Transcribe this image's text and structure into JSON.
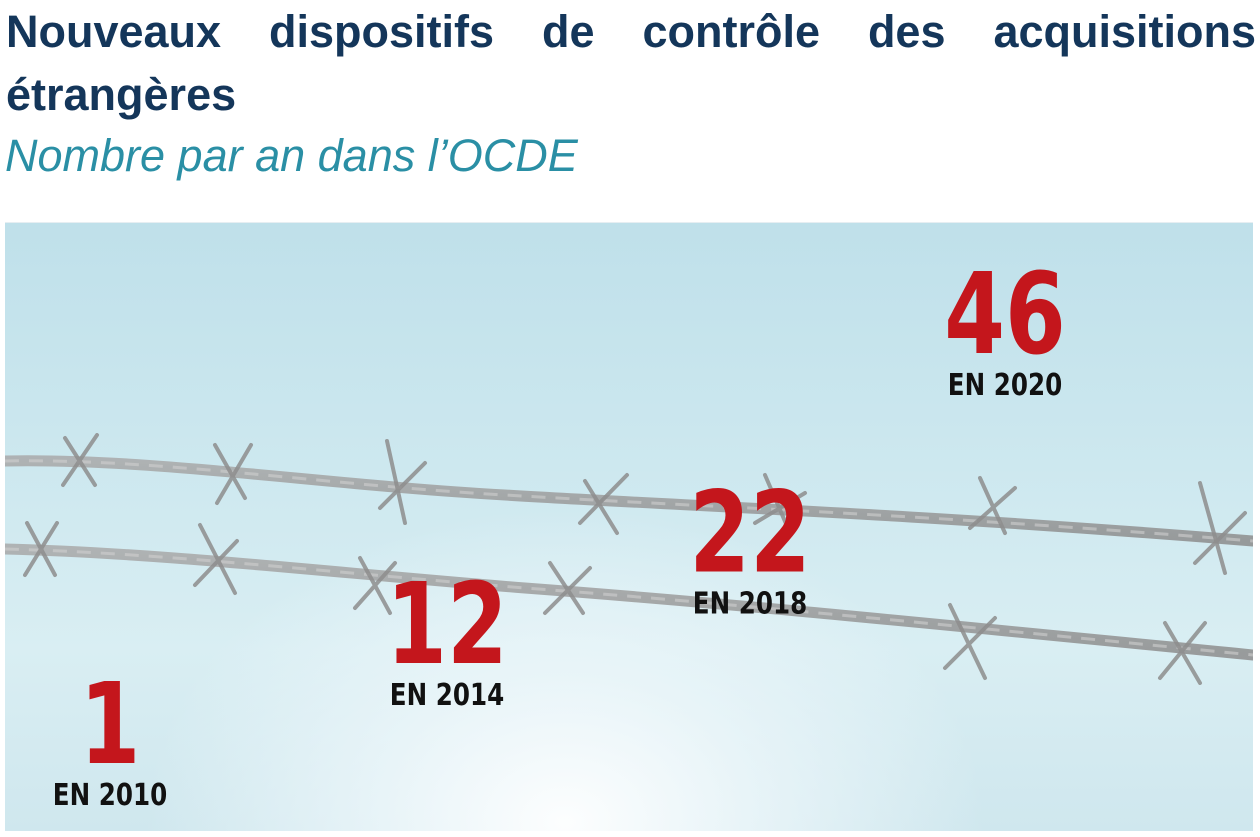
{
  "header": {
    "title": "Nouveaux dispositifs de contrôle des acquisitions étrangères",
    "subtitle": "Nombre par an dans l’OCDE"
  },
  "colors": {
    "title": "#14365a",
    "subtitle": "#2a8fa5",
    "value": "#c4161c",
    "year": "#111111",
    "background": "#cfe7ee"
  },
  "chart_data": {
    "type": "scatter",
    "title": "Nouveaux dispositifs de contrôle des acquisitions étrangères",
    "subtitle": "Nombre par an dans l’OCDE",
    "xlabel": "",
    "ylabel": "",
    "x": [
      2010,
      2014,
      2018,
      2020
    ],
    "values": [
      1,
      12,
      22,
      46
    ],
    "value_labels": [
      "1",
      "12",
      "22",
      "46"
    ],
    "x_labels": [
      "EN 2010",
      "EN 2014",
      "EN 2018",
      "EN 2020"
    ],
    "grid": false,
    "legend": "none"
  }
}
